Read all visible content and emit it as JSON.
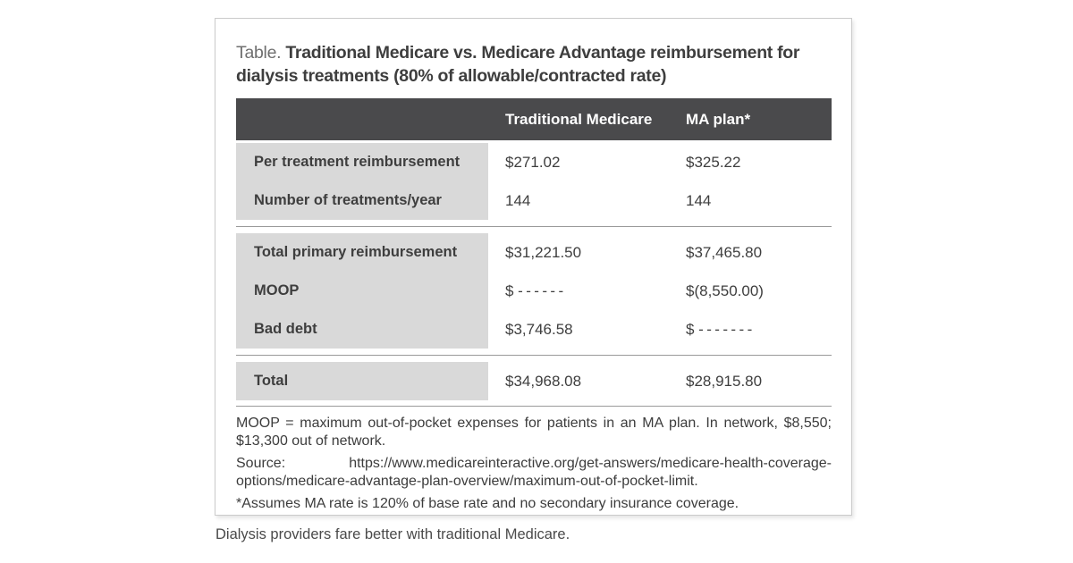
{
  "title": {
    "prefix": "Table.",
    "text": "Traditional Medicare vs. Medicare Advantage reimbursement for dialysis treatments (80% of allowable/contracted rate)"
  },
  "table": {
    "header": {
      "col2": "Traditional Medicare",
      "col3": "MA plan*"
    },
    "groups": [
      {
        "rows": [
          {
            "label": "Per treatment reimbursement",
            "traditional": "$271.02",
            "ma": "$325.22"
          },
          {
            "label": "Number of treatments/year",
            "traditional": "144",
            "ma": "144"
          }
        ]
      },
      {
        "rows": [
          {
            "label": "Total primary reimbursement",
            "traditional": "$31,221.50",
            "ma": "$37,465.80"
          },
          {
            "label": "MOOP",
            "traditional": "$ - - - - - -",
            "ma": "$(8,550.00)"
          },
          {
            "label": "Bad debt",
            "traditional": "$3,746.58",
            "ma": "$ - - - - - - -"
          }
        ]
      },
      {
        "rows": [
          {
            "label": "Total",
            "traditional": "$34,968.08",
            "ma": "$28,915.80"
          }
        ]
      }
    ]
  },
  "footnotes": [
    "MOOP = maximum out-of-pocket expenses for patients in an MA plan. In network, $8,550; $13,300 out of network.",
    "Source: https://www.medicareinteractive.org/get-answers/medicare-health-coverage-options/medicare-advantage-plan-overview/maximum-out-of-pocket-limit.",
    "*Assumes MA rate is 120% of base rate and no secondary insurance coverage."
  ],
  "caption": "Dialysis providers fare better with traditional Medicare.",
  "colors": {
    "header_bg": "#4a4a4c",
    "header_text": "#ffffff",
    "label_column_bg": "#d9d9d9",
    "divider_line": "#9a9a9a",
    "body_text": "#3d3d3d",
    "title_prefix": "#6f6f6f",
    "card_border": "#cbcbcb"
  }
}
